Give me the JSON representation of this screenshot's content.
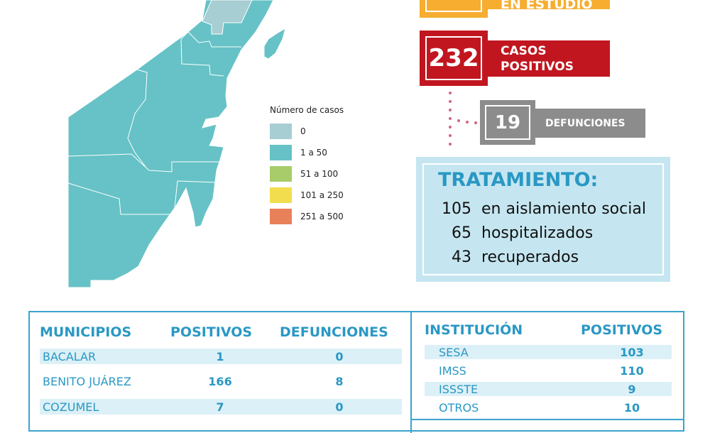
{
  "colors": {
    "orange": "#f6ad30",
    "red": "#c1161f",
    "gray": "#8c8c8c",
    "teal": "#66c2c6",
    "light": "#a6ced3",
    "blue": "#2a98c4"
  },
  "stats": {
    "estudio": {
      "label": "EN ESTUDIO"
    },
    "positivos": {
      "value": "232",
      "label_1": "CASOS",
      "label_2": "POSITIVOS"
    },
    "defunciones": {
      "value": "19",
      "label": "DEFUNCIONES"
    }
  },
  "legend": {
    "title": "Número de casos",
    "items": [
      {
        "label": "0",
        "color": "#a6ced3"
      },
      {
        "label": "1 a 50",
        "color": "#66c2c6"
      },
      {
        "label": "51 a 100",
        "color": "#a8cc6a"
      },
      {
        "label": "101 a 250",
        "color": "#f2dd4e"
      },
      {
        "label": "251 a 500",
        "color": "#e8805a"
      }
    ]
  },
  "tratamiento": {
    "title": "TRATAMIENTO:",
    "items": [
      {
        "value": "105",
        "label": "en aislamiento social"
      },
      {
        "value": "65",
        "label": "hospitalizados"
      },
      {
        "value": "43",
        "label": "recuperados"
      }
    ]
  },
  "municipios": {
    "headers": [
      "MUNICIPIOS",
      "POSITIVOS",
      "DEFUNCIONES"
    ],
    "rows": [
      {
        "name": "BACALAR",
        "positivos": "1",
        "defunciones": "0"
      },
      {
        "name": "BENITO JUÁREZ",
        "positivos": "166",
        "defunciones": "8"
      },
      {
        "name": "COZUMEL",
        "positivos": "7",
        "defunciones": "0"
      }
    ]
  },
  "instituciones": {
    "headers": [
      "INSTITUCIÓN",
      "POSITIVOS"
    ],
    "rows": [
      {
        "name": "SESA",
        "positivos": "103"
      },
      {
        "name": "IMSS",
        "positivos": "110"
      },
      {
        "name": "ISSSTE",
        "positivos": "9"
      },
      {
        "name": "OTROS",
        "positivos": "10"
      }
    ]
  }
}
